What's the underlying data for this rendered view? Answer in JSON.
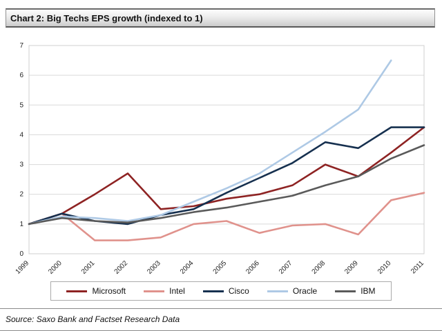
{
  "header": {
    "title": "Chart 2: Big Techs EPS growth (indexed to 1)"
  },
  "source": {
    "text": "Source: Saxo Bank and Factset Research Data"
  },
  "chart_data": {
    "type": "line",
    "title": "Chart 2: Big Techs EPS growth (indexed to 1)",
    "x": [
      1999,
      2000,
      2001,
      2002,
      2003,
      2004,
      2005,
      2006,
      2007,
      2008,
      2009,
      2010,
      2011
    ],
    "series": [
      {
        "name": "Microsoft",
        "color": "#8e2323",
        "values": [
          1.0,
          1.35,
          2.0,
          2.7,
          1.5,
          1.6,
          1.85,
          2.0,
          2.3,
          3.0,
          2.6,
          3.4,
          4.25
        ]
      },
      {
        "name": "Intel",
        "color": "#e0928c",
        "values": [
          1.0,
          1.35,
          0.45,
          0.45,
          0.55,
          1.0,
          1.1,
          0.7,
          0.95,
          1.0,
          0.65,
          1.8,
          2.05
        ]
      },
      {
        "name": "Cisco",
        "color": "#16304f",
        "values": [
          1.0,
          1.35,
          1.1,
          1.0,
          1.3,
          1.5,
          2.05,
          2.55,
          3.05,
          3.75,
          3.55,
          4.25,
          4.25
        ]
      },
      {
        "name": "Oracle",
        "color": "#aec9e5",
        "values": [
          1.0,
          1.25,
          1.2,
          1.1,
          1.3,
          1.75,
          2.2,
          2.7,
          3.4,
          4.1,
          4.85,
          6.5,
          null
        ]
      },
      {
        "name": "IBM",
        "color": "#5a5a5a",
        "values": [
          1.0,
          1.2,
          1.1,
          1.05,
          1.2,
          1.4,
          1.55,
          1.75,
          1.95,
          2.3,
          2.6,
          3.2,
          3.65
        ]
      }
    ],
    "ylim": [
      0,
      7
    ],
    "yticks": [
      0,
      1,
      2,
      3,
      4,
      5,
      6,
      7
    ],
    "grid": true,
    "legend_position": "bottom",
    "xlabel": "",
    "ylabel": ""
  }
}
